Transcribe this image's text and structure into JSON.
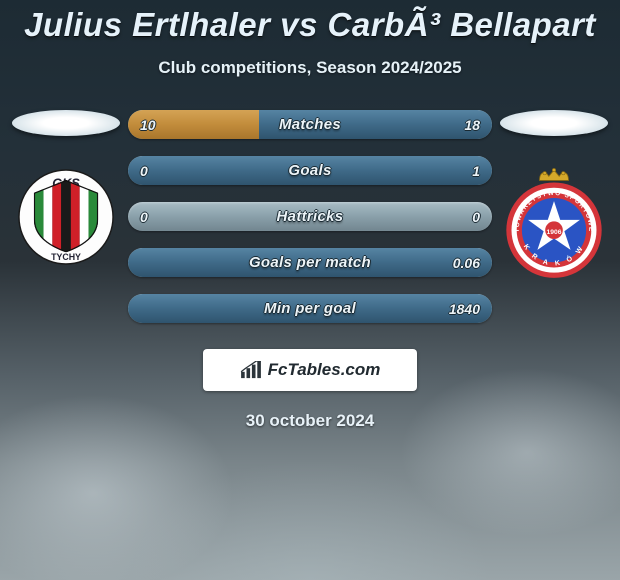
{
  "title": "Julius Ertlhaler vs CarbÃ³ Bellapart",
  "subtitle": "Club competitions, Season 2024/2025",
  "date": "30 october 2024",
  "brand": "FcTables.com",
  "colors": {
    "fill_left": "#c28c3b",
    "fill_left_grad_top": "#d4a355",
    "fill_left_grad_bot": "#a9762c",
    "fill_right": "#3f6a88",
    "fill_right_grad_top": "#5684a3",
    "fill_right_grad_bot": "#2f546e",
    "neutral_grad_top": "#a8bcc5",
    "neutral_grad_bot": "#728690"
  },
  "stats": [
    {
      "label": "Matches",
      "left_val": "10",
      "right_val": "18",
      "left_pct": 36,
      "right_pct": 64
    },
    {
      "label": "Goals",
      "left_val": "0",
      "right_val": "1",
      "left_pct": 0,
      "right_pct": 100
    },
    {
      "label": "Hattricks",
      "left_val": "0",
      "right_val": "0",
      "left_pct": 0,
      "right_pct": 0
    },
    {
      "label": "Goals per match",
      "left_val": "",
      "right_val": "0.06",
      "left_pct": 0,
      "right_pct": 100
    },
    {
      "label": "Min per goal",
      "left_val": "",
      "right_val": "1840",
      "left_pct": 0,
      "right_pct": 100
    }
  ],
  "badge_left": {
    "name": "GKS Tychy",
    "top_text": "GKS",
    "bottom_text": "TYCHY",
    "stripes": [
      "#2a8a3a",
      "#ffffff",
      "#d02028",
      "#1a1a1a",
      "#d02028",
      "#ffffff",
      "#2a8a3a"
    ]
  },
  "badge_right": {
    "name": "Wisła Kraków",
    "year": "1906",
    "star_bg": "#2a54c4",
    "star_fill": "#ffffff",
    "ring_colors": [
      "#d4353a",
      "#ffffff",
      "#d4353a"
    ],
    "crown": "#d4a82a"
  }
}
